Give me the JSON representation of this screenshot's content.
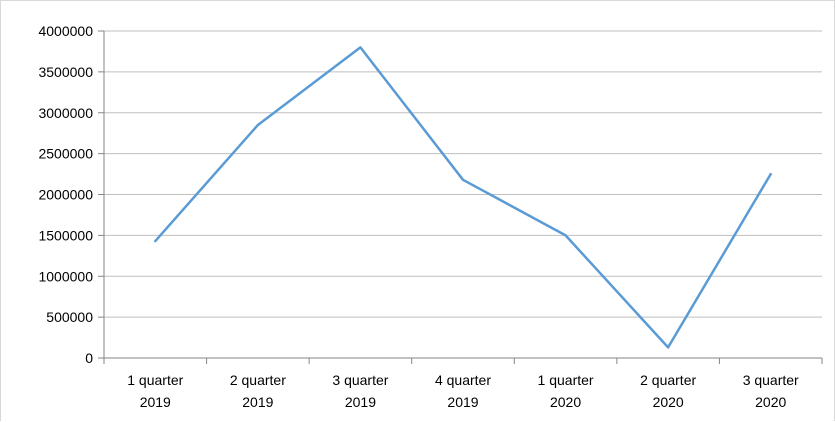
{
  "chart_data": {
    "type": "line",
    "title": "",
    "xlabel": "",
    "ylabel": "",
    "categories": [
      [
        "1 quarter",
        "2019"
      ],
      [
        "2 quarter",
        "2019"
      ],
      [
        "3 quarter",
        "2019"
      ],
      [
        "4 quarter",
        "2019"
      ],
      [
        "1 quarter",
        "2020"
      ],
      [
        "2 quarter",
        "2020"
      ],
      [
        "3 quarter",
        "2020"
      ]
    ],
    "series": [
      {
        "values": [
          1430000,
          2850000,
          3800000,
          2180000,
          1500000,
          130000,
          2250000
        ],
        "color": "#5b9bd5"
      }
    ],
    "ylim": [
      0,
      4000000
    ],
    "yticks": [
      "0",
      "500000",
      "1000000",
      "1500000",
      "2000000",
      "2500000",
      "3000000",
      "3500000",
      "4000000"
    ],
    "grid": true,
    "legend": "none"
  }
}
